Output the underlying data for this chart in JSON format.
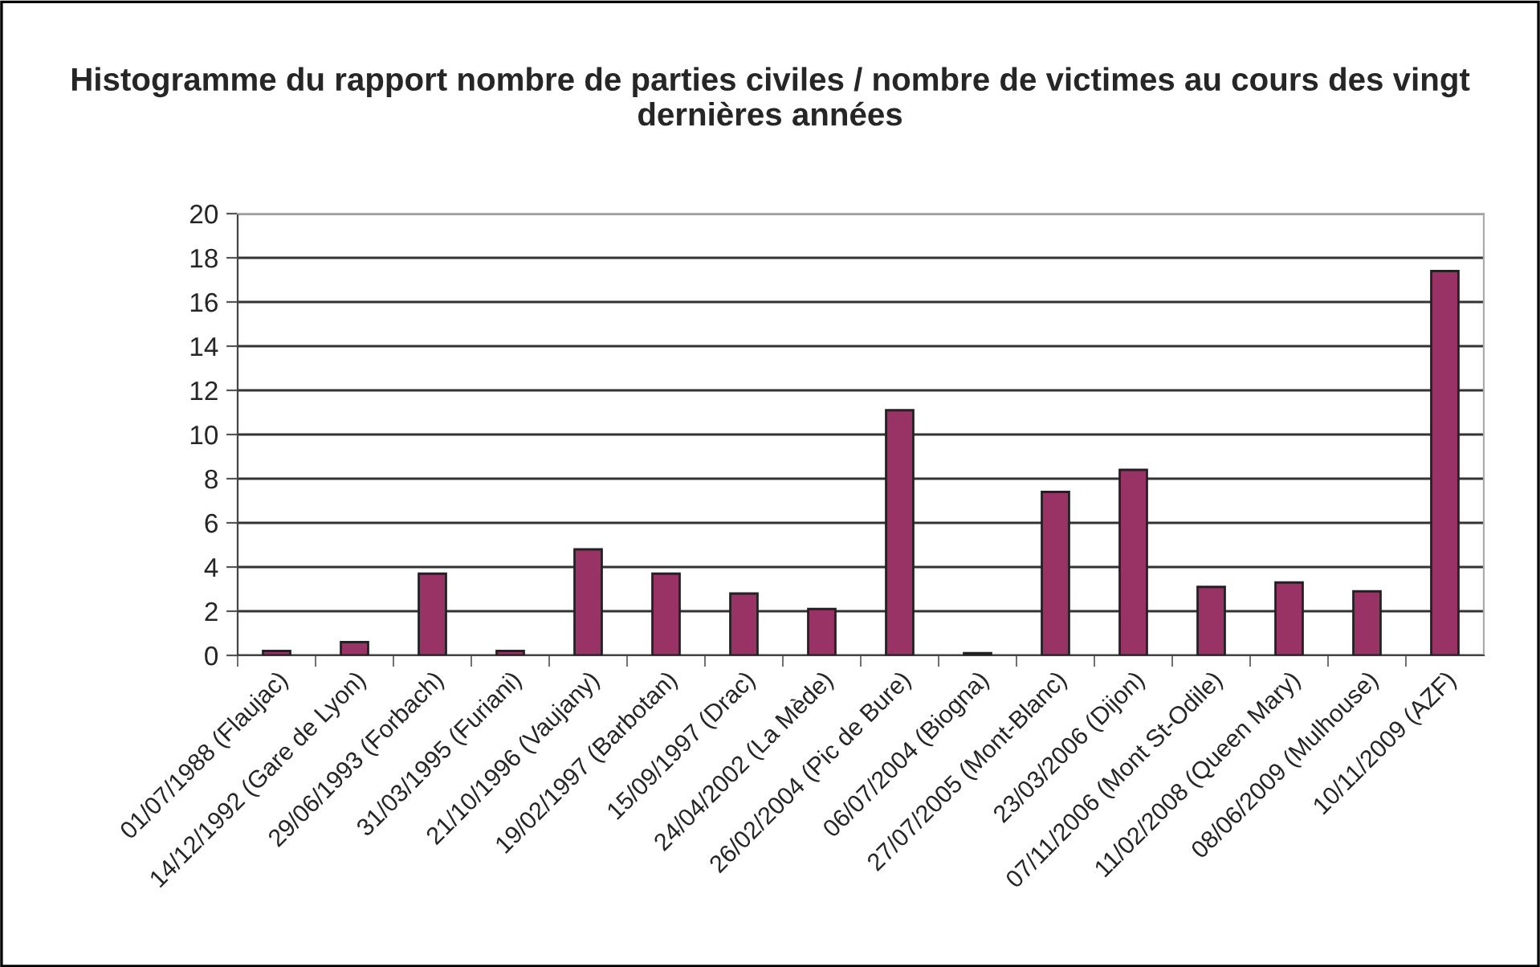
{
  "chart_data": {
    "type": "bar",
    "title": "Histogramme du rapport nombre de parties civiles / nombre de victimes au cours des vingt dernières années",
    "categories": [
      "01/07/1988 (Flaujac)",
      "14/12/1992 (Gare de Lyon)",
      "29/06/1993 (Forbach)",
      "31/03/1995 (Furiani)",
      "21/10/1996 (Vaujany)",
      "19/02/1997 (Barbotan)",
      "15/09/1997 (Drac)",
      "24/04/2002 (La Mède)",
      "26/02/2004 (Pic de Bure)",
      "06/07/2004 (Biogna)",
      "27/07/2005 (Mont-Blanc)",
      "23/03/2006 (Dijon)",
      "07/11/2006 (Mont St-Odile)",
      "11/02/2008 (Queen Mary)",
      "08/06/2009 (Mulhouse)",
      "10/11/2009 (AZF)"
    ],
    "values": [
      0.2,
      0.6,
      3.7,
      0.2,
      4.8,
      3.7,
      2.8,
      2.1,
      11.1,
      0.1,
      7.4,
      8.4,
      3.1,
      3.3,
      2.9,
      17.4
    ],
    "color": "#993366",
    "ylim": [
      0,
      20
    ],
    "yticks": [
      0,
      2,
      4,
      6,
      8,
      10,
      12,
      14,
      16,
      18,
      20
    ],
    "grid": "y",
    "legend": false
  }
}
